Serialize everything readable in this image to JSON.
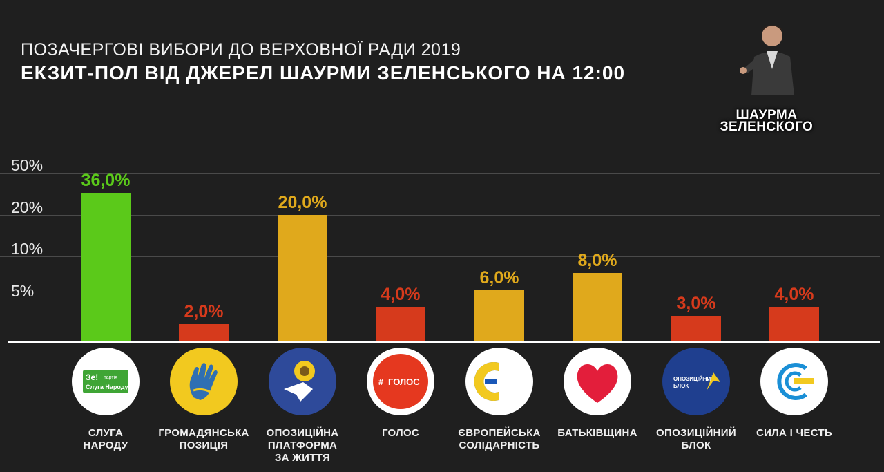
{
  "title": {
    "line1": "ПОЗАЧЕРГОВІ ВИБОРИ ДО ВЕРХОВНОЇ РАДИ 2019",
    "line2": "ЕКЗИТ-ПОЛ ВІД ДЖЕРЕЛ ШАУРМИ ЗЕЛЕНСЬКОГО НА 12:00"
  },
  "brand": {
    "line1": "ШАУРМА",
    "line2": "ЗЕЛЕНСКОГО"
  },
  "chart_data": {
    "type": "bar",
    "yscale": "piecewise (non-linear)",
    "y_ticks": [
      "50%",
      "20%",
      "10%",
      "5%"
    ],
    "categories": [
      "СЛУГА НАРОДУ",
      "ГРОМАДЯНСЬКА ПОЗИЦІЯ",
      "ОПОЗИЦІЙНА ПЛАТФОРМА ЗА ЖИТТЯ",
      "ГОЛОС",
      "ЄВРОПЕЙСЬКА СОЛІДАРНІСТЬ",
      "БАТЬКІВЩИНА",
      "ОПОЗИЦІЙНИЙ БЛОК",
      "СИЛА І ЧЕСТЬ"
    ],
    "values": [
      36.0,
      2.0,
      20.0,
      4.0,
      6.0,
      8.0,
      3.0,
      4.0
    ],
    "value_labels": [
      "36,0%",
      "2,0%",
      "20,0%",
      "4,0%",
      "6,0%",
      "8,0%",
      "3,0%",
      "4,0%"
    ],
    "bar_colors": [
      "#5bc91a",
      "#d63a1c",
      "#e0a91c",
      "#d63a1c",
      "#e0a91c",
      "#e0a91c",
      "#d63a1c",
      "#d63a1c"
    ],
    "label_colors": [
      "#5bc91a",
      "#d63a1c",
      "#e0a91c",
      "#d63a1c",
      "#e0a91c",
      "#e0a91c",
      "#d63a1c",
      "#d63a1c"
    ],
    "grid": true,
    "legend": "none"
  },
  "parties": [
    {
      "line1": "СЛУГА",
      "line2": "НАРОДУ",
      "line3": "",
      "logo": "sluha-narodu-logo",
      "logo_text1": "Зе!",
      "logo_text2": "партія",
      "logo_text3": "Слуга Народу"
    },
    {
      "line1": "ГРОМАДЯНСЬКА",
      "line2": "ПОЗИЦІЯ",
      "line3": "",
      "logo": "hand-logo"
    },
    {
      "line1": "ОПОЗИЦІЙНА",
      "line2": "ПЛАТФОРМА",
      "line3": "ЗА ЖИТТЯ",
      "logo": "sunflower-dove-logo"
    },
    {
      "line1": "ГОЛОС",
      "line2": "",
      "line3": "",
      "logo": "holos-logo",
      "logo_text1": "ГОЛОС"
    },
    {
      "line1": "ЄВРОПЕЙСЬКА",
      "line2": "СОЛІДАРНІСТЬ",
      "line3": "",
      "logo": "es-logo"
    },
    {
      "line1": "БАТЬКІВЩИНА",
      "line2": "",
      "line3": "",
      "logo": "heart-logo"
    },
    {
      "line1": "ОПОЗИЦІЙНИЙ",
      "line2": "БЛОК",
      "line3": "",
      "logo": "opposition-bloc-logo",
      "logo_text1": "ОПОЗИЦІЙНИЙ",
      "logo_text2": "БЛОК"
    },
    {
      "line1": "СИЛА І ЧЕСТЬ",
      "line2": "",
      "line3": "",
      "logo": "syla-i-chest-logo"
    }
  ]
}
